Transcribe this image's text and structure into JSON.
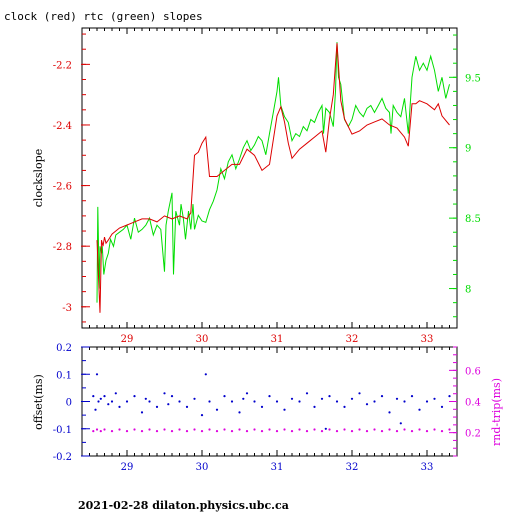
{
  "title": "clock (red) rtc (green) slopes",
  "footer": "2021-02-28  dilaton.physics.ubc.ca",
  "colors": {
    "clock": "#dd0000",
    "rtc": "#00dd00",
    "offset": "#0000cc",
    "rnd_trip": "#dd00dd",
    "axis": "#000000"
  },
  "chart_data": [
    {
      "type": "line",
      "title": "clock (red) rtc (green) slopes",
      "ylabel": "clockslope",
      "xlim": [
        28.4,
        33.4
      ],
      "ylim": [
        -3.07,
        -2.08
      ],
      "y2lim": [
        7.72,
        9.85
      ],
      "xticks": [
        29,
        30,
        31,
        32,
        33
      ],
      "yticks": [
        -2.2,
        -2.4,
        -2.6,
        -2.8,
        -3
      ],
      "yticklabels": [
        "-2.2",
        "-2.4",
        "-2.6",
        "-2.8",
        "-3"
      ],
      "y2ticks": [
        9.5,
        9,
        8.5,
        8
      ],
      "y2ticklabels": [
        "9.5",
        "9",
        "8.5",
        "8"
      ],
      "series": [
        {
          "name": "clock",
          "axis": "left",
          "x": [
            28.6,
            28.62,
            28.64,
            28.66,
            28.68,
            28.7,
            28.72,
            28.75,
            28.8,
            28.85,
            28.9,
            29.0,
            29.1,
            29.2,
            29.3,
            29.4,
            29.5,
            29.6,
            29.7,
            29.8,
            29.85,
            29.9,
            29.95,
            30.0,
            30.05,
            30.1,
            30.2,
            30.3,
            30.4,
            30.5,
            30.6,
            30.7,
            30.8,
            30.9,
            31.0,
            31.05,
            31.1,
            31.15,
            31.2,
            31.3,
            31.4,
            31.5,
            31.6,
            31.65,
            31.7,
            31.75,
            31.8,
            31.85,
            31.9,
            32.0,
            32.1,
            32.2,
            32.3,
            32.4,
            32.5,
            32.6,
            32.7,
            32.75,
            32.8,
            32.85,
            32.9,
            33.0,
            33.1,
            33.15,
            33.2,
            33.3
          ],
          "values": [
            -2.78,
            -2.9,
            -3.02,
            -2.78,
            -2.8,
            -2.77,
            -2.79,
            -2.78,
            -2.76,
            -2.75,
            -2.74,
            -2.73,
            -2.72,
            -2.71,
            -2.71,
            -2.72,
            -2.7,
            -2.71,
            -2.7,
            -2.71,
            -2.69,
            -2.5,
            -2.49,
            -2.46,
            -2.44,
            -2.57,
            -2.57,
            -2.55,
            -2.53,
            -2.53,
            -2.48,
            -2.5,
            -2.55,
            -2.53,
            -2.37,
            -2.34,
            -2.39,
            -2.46,
            -2.51,
            -2.48,
            -2.46,
            -2.44,
            -2.42,
            -2.49,
            -2.38,
            -2.3,
            -2.13,
            -2.32,
            -2.38,
            -2.43,
            -2.42,
            -2.4,
            -2.39,
            -2.38,
            -2.4,
            -2.41,
            -2.44,
            -2.47,
            -2.33,
            -2.33,
            -2.32,
            -2.33,
            -2.35,
            -2.33,
            -2.37,
            -2.4
          ]
        },
        {
          "name": "rtc",
          "axis": "right",
          "x": [
            28.6,
            28.61,
            28.63,
            28.64,
            28.66,
            28.67,
            28.69,
            28.72,
            28.75,
            28.78,
            28.82,
            28.85,
            28.9,
            28.95,
            29.0,
            29.05,
            29.1,
            29.15,
            29.2,
            29.25,
            29.3,
            29.35,
            29.4,
            29.45,
            29.5,
            29.52,
            29.55,
            29.6,
            29.62,
            29.65,
            29.7,
            29.72,
            29.75,
            29.78,
            29.8,
            29.82,
            29.85,
            29.88,
            29.9,
            29.95,
            30.0,
            30.05,
            30.1,
            30.15,
            30.2,
            30.25,
            30.3,
            30.35,
            30.4,
            30.45,
            30.5,
            30.55,
            30.6,
            30.65,
            30.7,
            30.75,
            30.8,
            30.85,
            30.9,
            30.95,
            31.0,
            31.02,
            31.05,
            31.1,
            31.15,
            31.2,
            31.25,
            31.3,
            31.35,
            31.4,
            31.45,
            31.5,
            31.55,
            31.6,
            31.62,
            31.65,
            31.7,
            31.75,
            31.78,
            31.8,
            31.82,
            31.85,
            31.9,
            31.95,
            32.0,
            32.05,
            32.1,
            32.15,
            32.2,
            32.25,
            32.3,
            32.35,
            32.4,
            32.45,
            32.5,
            32.52,
            32.55,
            32.6,
            32.65,
            32.7,
            32.75,
            32.8,
            32.85,
            32.9,
            32.95,
            33.0,
            33.05,
            33.1,
            33.15,
            33.2,
            33.25,
            33.3
          ],
          "values": [
            7.9,
            8.58,
            8.0,
            8.3,
            8.25,
            8.3,
            8.1,
            8.2,
            8.25,
            8.35,
            8.3,
            8.38,
            8.4,
            8.42,
            8.45,
            8.35,
            8.5,
            8.4,
            8.42,
            8.45,
            8.5,
            8.38,
            8.45,
            8.42,
            8.12,
            8.45,
            8.55,
            8.68,
            8.1,
            8.55,
            8.45,
            8.6,
            8.5,
            8.35,
            8.45,
            8.55,
            8.42,
            8.6,
            8.42,
            8.52,
            8.48,
            8.47,
            8.56,
            8.62,
            8.7,
            8.85,
            8.78,
            8.9,
            8.95,
            8.85,
            8.92,
            9.0,
            9.05,
            8.98,
            9.02,
            9.08,
            9.05,
            8.95,
            9.1,
            9.25,
            9.4,
            9.5,
            9.3,
            9.22,
            9.18,
            9.05,
            9.1,
            9.08,
            9.15,
            9.12,
            9.2,
            9.18,
            9.25,
            9.3,
            9.1,
            9.28,
            9.25,
            9.15,
            9.4,
            9.75,
            9.5,
            9.45,
            9.2,
            9.15,
            9.2,
            9.3,
            9.25,
            9.22,
            9.28,
            9.3,
            9.25,
            9.3,
            9.35,
            9.28,
            9.25,
            9.1,
            9.3,
            9.25,
            9.22,
            9.35,
            9.1,
            9.5,
            9.65,
            9.55,
            9.6,
            9.55,
            9.65,
            9.55,
            9.4,
            9.5,
            9.35,
            9.45
          ]
        }
      ]
    },
    {
      "type": "scatter",
      "ylabel": "offset(ms)",
      "y2label": "rnd-trip(ms)",
      "xlim": [
        28.4,
        33.4
      ],
      "ylim": [
        -0.2,
        0.2
      ],
      "y2lim": [
        0.05,
        0.75
      ],
      "xticks": [
        29,
        30,
        31,
        32,
        33
      ],
      "yticks": [
        0.2,
        0.1,
        0,
        -0.1,
        -0.2
      ],
      "yticklabels": [
        "0.2",
        "0.1",
        "0",
        "-0.1",
        "-0.2"
      ],
      "y2ticks": [
        0.6,
        0.4,
        0.2
      ],
      "y2ticklabels": [
        "0.6",
        "0.4",
        "0.2"
      ],
      "series": [
        {
          "name": "offset",
          "axis": "left",
          "x": [
            28.55,
            28.58,
            28.6,
            28.62,
            28.65,
            28.7,
            28.75,
            28.8,
            28.85,
            28.9,
            29.0,
            29.1,
            29.2,
            29.25,
            29.3,
            29.4,
            29.5,
            29.55,
            29.6,
            29.7,
            29.8,
            29.9,
            30.0,
            30.05,
            30.1,
            30.2,
            30.3,
            30.4,
            30.5,
            30.55,
            30.6,
            30.7,
            30.8,
            30.9,
            31.0,
            31.1,
            31.2,
            31.3,
            31.4,
            31.5,
            31.6,
            31.65,
            31.7,
            31.8,
            31.9,
            32.0,
            32.1,
            32.2,
            32.3,
            32.4,
            32.5,
            32.6,
            32.65,
            32.7,
            32.8,
            32.9,
            33.0,
            33.1,
            33.2,
            33.3
          ],
          "values": [
            0.02,
            -0.03,
            0.1,
            0.0,
            0.01,
            0.02,
            -0.01,
            0.0,
            0.03,
            -0.02,
            0.0,
            0.02,
            -0.04,
            0.01,
            0.0,
            -0.02,
            0.03,
            -0.01,
            0.02,
            0.0,
            -0.02,
            0.01,
            -0.05,
            0.1,
            0.0,
            -0.03,
            0.02,
            0.0,
            -0.04,
            0.01,
            0.03,
            0.0,
            -0.02,
            0.02,
            0.0,
            -0.03,
            0.01,
            0.0,
            0.03,
            -0.02,
            0.01,
            -0.1,
            0.02,
            0.0,
            -0.02,
            0.01,
            0.03,
            -0.01,
            0.0,
            0.02,
            -0.04,
            0.01,
            -0.08,
            0.0,
            0.02,
            -0.03,
            0.0,
            0.01,
            -0.02,
            0.02
          ]
        },
        {
          "name": "rnd-trip",
          "axis": "right",
          "x": [
            28.55,
            28.6,
            28.65,
            28.7,
            28.8,
            28.9,
            29.0,
            29.1,
            29.2,
            29.3,
            29.4,
            29.5,
            29.6,
            29.7,
            29.8,
            29.9,
            30.0,
            30.1,
            30.2,
            30.3,
            30.4,
            30.5,
            30.6,
            30.7,
            30.8,
            30.9,
            31.0,
            31.1,
            31.2,
            31.3,
            31.4,
            31.5,
            31.6,
            31.7,
            31.8,
            31.9,
            32.0,
            32.1,
            32.2,
            32.3,
            32.4,
            32.5,
            32.6,
            32.7,
            32.8,
            32.9,
            33.0,
            33.1,
            33.2,
            33.3
          ],
          "values": [
            0.21,
            0.22,
            0.21,
            0.22,
            0.21,
            0.22,
            0.21,
            0.22,
            0.21,
            0.22,
            0.21,
            0.22,
            0.21,
            0.22,
            0.21,
            0.22,
            0.21,
            0.22,
            0.21,
            0.22,
            0.21,
            0.22,
            0.21,
            0.22,
            0.21,
            0.22,
            0.21,
            0.22,
            0.21,
            0.22,
            0.21,
            0.22,
            0.21,
            0.22,
            0.21,
            0.22,
            0.21,
            0.22,
            0.21,
            0.22,
            0.21,
            0.22,
            0.21,
            0.22,
            0.21,
            0.22,
            0.21,
            0.22,
            0.21,
            0.22
          ]
        }
      ]
    }
  ]
}
